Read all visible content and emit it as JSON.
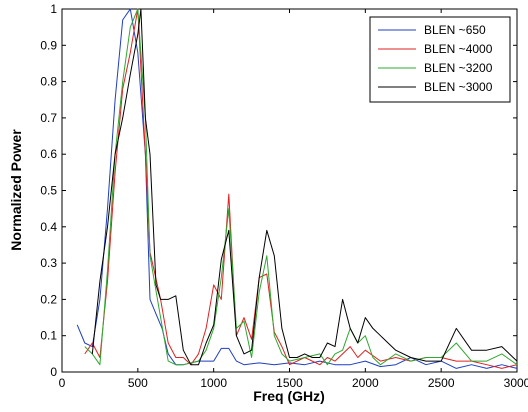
{
  "chart_data": {
    "type": "line",
    "title": "",
    "xlabel": "Freq (GHz)",
    "ylabel": "Normalized Power",
    "xlim": [
      0,
      3000
    ],
    "ylim": [
      0,
      1
    ],
    "xticks": [
      0,
      500,
      1000,
      1500,
      2000,
      2500,
      3000
    ],
    "yticks": [
      0,
      0.1,
      0.2,
      0.3,
      0.4,
      0.5,
      0.6,
      0.7,
      0.8,
      0.9,
      1
    ],
    "grid": false,
    "legend_position": "top-right",
    "series": [
      {
        "name": "BLEN ~650",
        "color": "#1f3fbf",
        "points": [
          [
            100,
            0.13
          ],
          [
            150,
            0.08
          ],
          [
            200,
            0.07
          ],
          [
            250,
            0.2
          ],
          [
            300,
            0.45
          ],
          [
            350,
            0.75
          ],
          [
            400,
            0.97
          ],
          [
            450,
            1.0
          ],
          [
            500,
            0.88
          ],
          [
            550,
            0.6
          ],
          [
            580,
            0.2
          ],
          [
            620,
            0.16
          ],
          [
            660,
            0.12
          ],
          [
            700,
            0.05
          ],
          [
            750,
            0.02
          ],
          [
            800,
            0.02
          ],
          [
            900,
            0.03
          ],
          [
            1000,
            0.03
          ],
          [
            1050,
            0.065
          ],
          [
            1100,
            0.065
          ],
          [
            1150,
            0.03
          ],
          [
            1200,
            0.02
          ],
          [
            1300,
            0.025
          ],
          [
            1400,
            0.02
          ],
          [
            1500,
            0.025
          ],
          [
            1600,
            0.02
          ],
          [
            1700,
            0.03
          ],
          [
            1800,
            0.02
          ],
          [
            1900,
            0.02
          ],
          [
            2000,
            0.03
          ],
          [
            2100,
            0.015
          ],
          [
            2200,
            0.02
          ],
          [
            2300,
            0.04
          ],
          [
            2400,
            0.02
          ],
          [
            2500,
            0.03
          ],
          [
            2600,
            0.01
          ],
          [
            2700,
            0.02
          ],
          [
            2800,
            0.01
          ],
          [
            2900,
            0.02
          ],
          [
            3000,
            0.01
          ]
        ]
      },
      {
        "name": "BLEN ~4000",
        "color": "#e02020",
        "points": [
          [
            150,
            0.05
          ],
          [
            200,
            0.08
          ],
          [
            250,
            0.04
          ],
          [
            300,
            0.25
          ],
          [
            350,
            0.55
          ],
          [
            400,
            0.78
          ],
          [
            450,
            0.88
          ],
          [
            500,
            1.0
          ],
          [
            550,
            0.6
          ],
          [
            580,
            0.33
          ],
          [
            650,
            0.2
          ],
          [
            700,
            0.08
          ],
          [
            750,
            0.04
          ],
          [
            800,
            0.04
          ],
          [
            850,
            0.02
          ],
          [
            900,
            0.05
          ],
          [
            950,
            0.12
          ],
          [
            1000,
            0.24
          ],
          [
            1050,
            0.2
          ],
          [
            1100,
            0.49
          ],
          [
            1150,
            0.1
          ],
          [
            1200,
            0.15
          ],
          [
            1250,
            0.09
          ],
          [
            1300,
            0.26
          ],
          [
            1350,
            0.27
          ],
          [
            1400,
            0.11
          ],
          [
            1450,
            0.07
          ],
          [
            1500,
            0.02
          ],
          [
            1550,
            0.03
          ],
          [
            1600,
            0.04
          ],
          [
            1700,
            0.02
          ],
          [
            1750,
            0.04
          ],
          [
            1800,
            0.03
          ],
          [
            1850,
            0.05
          ],
          [
            1900,
            0.07
          ],
          [
            1950,
            0.04
          ],
          [
            2000,
            0.06
          ],
          [
            2100,
            0.03
          ],
          [
            2200,
            0.04
          ],
          [
            2300,
            0.03
          ],
          [
            2400,
            0.04
          ],
          [
            2500,
            0.04
          ],
          [
            2600,
            0.03
          ],
          [
            2700,
            0.03
          ],
          [
            2800,
            0.02
          ],
          [
            2900,
            0.01
          ],
          [
            3000,
            0.02
          ]
        ]
      },
      {
        "name": "BLEN ~3200",
        "color": "#2fa82f",
        "points": [
          [
            150,
            0.07
          ],
          [
            200,
            0.05
          ],
          [
            250,
            0.02
          ],
          [
            300,
            0.28
          ],
          [
            350,
            0.6
          ],
          [
            400,
            0.8
          ],
          [
            450,
            0.95
          ],
          [
            500,
            1.0
          ],
          [
            550,
            0.7
          ],
          [
            580,
            0.32
          ],
          [
            650,
            0.15
          ],
          [
            700,
            0.03
          ],
          [
            750,
            0.02
          ],
          [
            800,
            0.02
          ],
          [
            900,
            0.03
          ],
          [
            950,
            0.06
          ],
          [
            1000,
            0.12
          ],
          [
            1050,
            0.26
          ],
          [
            1100,
            0.45
          ],
          [
            1150,
            0.12
          ],
          [
            1200,
            0.14
          ],
          [
            1250,
            0.04
          ],
          [
            1300,
            0.22
          ],
          [
            1350,
            0.32
          ],
          [
            1400,
            0.1
          ],
          [
            1450,
            0.05
          ],
          [
            1500,
            0.03
          ],
          [
            1600,
            0.04
          ],
          [
            1700,
            0.05
          ],
          [
            1750,
            0.02
          ],
          [
            1800,
            0.05
          ],
          [
            1850,
            0.06
          ],
          [
            1900,
            0.12
          ],
          [
            1950,
            0.08
          ],
          [
            2000,
            0.1
          ],
          [
            2050,
            0.04
          ],
          [
            2100,
            0.02
          ],
          [
            2200,
            0.05
          ],
          [
            2300,
            0.03
          ],
          [
            2400,
            0.04
          ],
          [
            2500,
            0.04
          ],
          [
            2600,
            0.08
          ],
          [
            2700,
            0.03
          ],
          [
            2800,
            0.03
          ],
          [
            2900,
            0.05
          ],
          [
            3000,
            0.02
          ]
        ]
      },
      {
        "name": "BLEN ~3000",
        "color": "#000000",
        "points": [
          [
            200,
            0.05
          ],
          [
            250,
            0.25
          ],
          [
            300,
            0.4
          ],
          [
            350,
            0.6
          ],
          [
            400,
            0.7
          ],
          [
            450,
            0.82
          ],
          [
            500,
            0.93
          ],
          [
            520,
            1.0
          ],
          [
            550,
            0.7
          ],
          [
            580,
            0.6
          ],
          [
            620,
            0.24
          ],
          [
            650,
            0.2
          ],
          [
            700,
            0.2
          ],
          [
            750,
            0.21
          ],
          [
            800,
            0.06
          ],
          [
            850,
            0.02
          ],
          [
            900,
            0.02
          ],
          [
            950,
            0.08
          ],
          [
            1000,
            0.13
          ],
          [
            1050,
            0.31
          ],
          [
            1100,
            0.39
          ],
          [
            1150,
            0.1
          ],
          [
            1200,
            0.05
          ],
          [
            1250,
            0.06
          ],
          [
            1300,
            0.26
          ],
          [
            1350,
            0.39
          ],
          [
            1400,
            0.32
          ],
          [
            1450,
            0.12
          ],
          [
            1500,
            0.04
          ],
          [
            1550,
            0.04
          ],
          [
            1600,
            0.05
          ],
          [
            1650,
            0.04
          ],
          [
            1700,
            0.04
          ],
          [
            1750,
            0.08
          ],
          [
            1800,
            0.07
          ],
          [
            1850,
            0.2
          ],
          [
            1900,
            0.12
          ],
          [
            1950,
            0.08
          ],
          [
            2000,
            0.15
          ],
          [
            2050,
            0.12
          ],
          [
            2100,
            0.1
          ],
          [
            2150,
            0.08
          ],
          [
            2200,
            0.06
          ],
          [
            2300,
            0.04
          ],
          [
            2400,
            0.03
          ],
          [
            2500,
            0.03
          ],
          [
            2600,
            0.12
          ],
          [
            2700,
            0.06
          ],
          [
            2800,
            0.06
          ],
          [
            2900,
            0.07
          ],
          [
            3000,
            0.03
          ]
        ]
      }
    ]
  }
}
